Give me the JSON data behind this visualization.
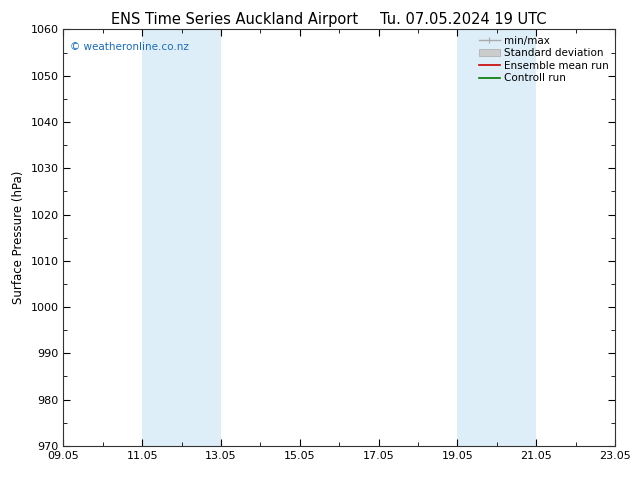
{
  "title_left": "ENS Time Series Auckland Airport",
  "title_right": "Tu. 07.05.2024 19 UTC",
  "ylabel": "Surface Pressure (hPa)",
  "ylim": [
    970,
    1060
  ],
  "yticks": [
    970,
    980,
    990,
    1000,
    1010,
    1020,
    1030,
    1040,
    1050,
    1060
  ],
  "xlim": [
    0,
    14
  ],
  "xtick_labels": [
    "09.05",
    "11.05",
    "13.05",
    "15.05",
    "17.05",
    "19.05",
    "21.05",
    "23.05"
  ],
  "xtick_positions": [
    0,
    2,
    4,
    6,
    8,
    10,
    12,
    14
  ],
  "shaded_bands": [
    {
      "x_start": 2,
      "x_end": 4
    },
    {
      "x_start": 10,
      "x_end": 12
    }
  ],
  "band_color": "#ddeef8",
  "watermark": "© weatheronline.co.nz",
  "watermark_color": "#1a6bbf",
  "legend_items": [
    {
      "label": "min/max",
      "color": "#aaaaaa"
    },
    {
      "label": "Standard deviation",
      "color": "#bbbbbb"
    },
    {
      "label": "Ensemble mean run",
      "color": "#cc0000"
    },
    {
      "label": "Controll run",
      "color": "#007700"
    }
  ],
  "background_color": "#ffffff",
  "plot_bg_color": "#ffffff",
  "title_fontsize": 10.5,
  "axis_label_fontsize": 8.5,
  "tick_fontsize": 8,
  "legend_fontsize": 7.5
}
